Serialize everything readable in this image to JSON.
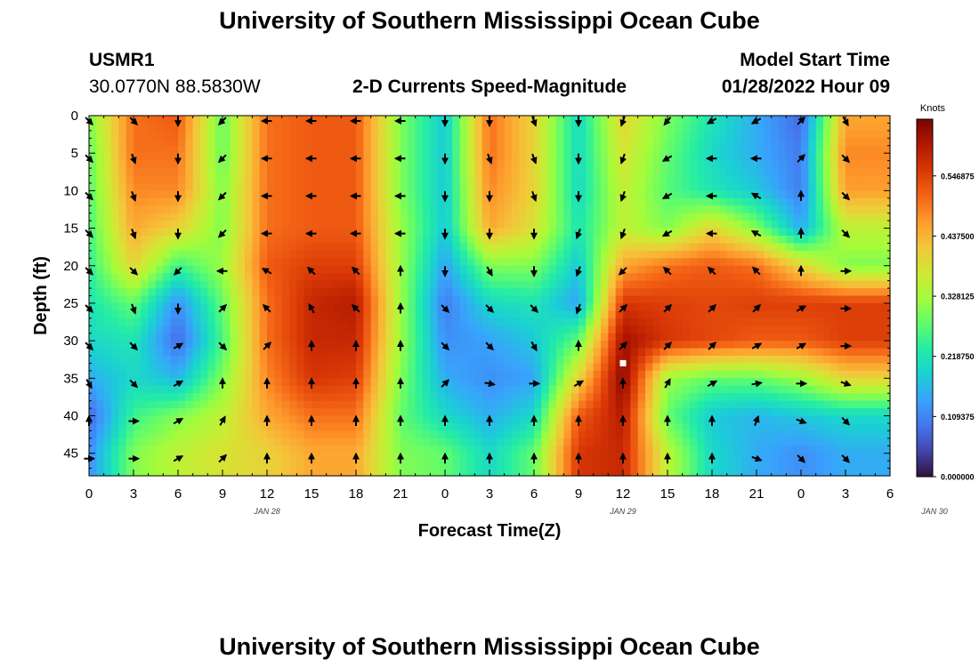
{
  "page": {
    "title_top": "University of Southern Mississippi Ocean Cube",
    "title_bottom": "University of Southern Mississippi Ocean Cube",
    "station": "USMR1",
    "coords": "30.0770N  88.5830W",
    "chart_title": "2-D Currents Speed-Magnitude",
    "model_label": "Model Start Time",
    "model_time": "01/28/2022 Hour 09"
  },
  "chart_data": {
    "type": "heatmap",
    "title": "2-D Currents Speed-Magnitude",
    "xlabel": "Forecast Time(Z)",
    "ylabel": "Depth (ft)",
    "x_ticks": [
      "0",
      "3",
      "6",
      "9",
      "12",
      "15",
      "18",
      "21",
      "0",
      "3",
      "6",
      "9",
      "12",
      "15",
      "18",
      "21",
      "0",
      "3",
      "6"
    ],
    "date_labels": [
      {
        "text": "JAN 28",
        "hour": 12
      },
      {
        "text": "JAN 29",
        "hour": 36
      },
      {
        "text": "JAN 30",
        "hour": 57
      }
    ],
    "x_range_hours": [
      0,
      54
    ],
    "y_ticks": [
      0,
      5,
      10,
      15,
      20,
      25,
      30,
      35,
      40,
      45
    ],
    "y_range_ft": [
      0,
      48
    ],
    "colorbar": {
      "unit": "Knots",
      "range": [
        0,
        0.65
      ],
      "tick_labels": [
        "0.000000",
        "0.109375",
        "0.218750",
        "0.328125",
        "0.437500",
        "0.546875"
      ],
      "tick_values": [
        0,
        0.109375,
        0.21875,
        0.328125,
        0.4375,
        0.546875
      ],
      "colors": [
        "#30123b",
        "#4145ab",
        "#4675ed",
        "#39a2fc",
        "#1bcfd4",
        "#24eca6",
        "#61fc6c",
        "#a4fc3b",
        "#d1e834",
        "#f3c63a",
        "#fe9b2d",
        "#f36315",
        "#d93806",
        "#b11901",
        "#7a0403"
      ]
    },
    "marker": {
      "hour": 36,
      "depth_ft": 33
    },
    "arrow_hours": [
      0,
      3,
      6,
      9,
      12,
      15,
      18,
      21,
      24,
      27,
      30,
      33,
      36,
      39,
      42,
      45,
      48,
      51
    ],
    "arrow_depths_ft": [
      0,
      5,
      10,
      15,
      20,
      25,
      30,
      35,
      40,
      45
    ],
    "speed_grid": [
      [
        0.3,
        0.5,
        0.52,
        0.28,
        0.5,
        0.52,
        0.52,
        0.3,
        0.18,
        0.5,
        0.4,
        0.2,
        0.4,
        0.3,
        0.22,
        0.15,
        0.08,
        0.45
      ],
      [
        0.28,
        0.5,
        0.5,
        0.28,
        0.5,
        0.52,
        0.52,
        0.3,
        0.18,
        0.5,
        0.4,
        0.2,
        0.38,
        0.28,
        0.2,
        0.15,
        0.1,
        0.48
      ],
      [
        0.27,
        0.48,
        0.48,
        0.3,
        0.5,
        0.52,
        0.52,
        0.3,
        0.18,
        0.48,
        0.4,
        0.2,
        0.36,
        0.27,
        0.22,
        0.18,
        0.1,
        0.46
      ],
      [
        0.26,
        0.45,
        0.4,
        0.3,
        0.5,
        0.52,
        0.52,
        0.32,
        0.18,
        0.45,
        0.38,
        0.22,
        0.35,
        0.3,
        0.4,
        0.3,
        0.15,
        0.35
      ],
      [
        0.24,
        0.4,
        0.25,
        0.32,
        0.52,
        0.55,
        0.55,
        0.32,
        0.14,
        0.3,
        0.3,
        0.18,
        0.45,
        0.5,
        0.52,
        0.5,
        0.4,
        0.3
      ],
      [
        0.22,
        0.28,
        0.12,
        0.28,
        0.5,
        0.58,
        0.6,
        0.32,
        0.1,
        0.2,
        0.22,
        0.14,
        0.56,
        0.55,
        0.54,
        0.55,
        0.55,
        0.55
      ],
      [
        0.2,
        0.22,
        0.08,
        0.26,
        0.5,
        0.58,
        0.58,
        0.32,
        0.12,
        0.14,
        0.18,
        0.28,
        0.62,
        0.56,
        0.54,
        0.52,
        0.52,
        0.55
      ],
      [
        0.15,
        0.2,
        0.16,
        0.3,
        0.48,
        0.56,
        0.55,
        0.3,
        0.15,
        0.12,
        0.14,
        0.4,
        0.64,
        0.32,
        0.28,
        0.28,
        0.32,
        0.4
      ],
      [
        0.08,
        0.25,
        0.3,
        0.35,
        0.45,
        0.5,
        0.5,
        0.28,
        0.2,
        0.15,
        0.2,
        0.52,
        0.6,
        0.28,
        0.18,
        0.16,
        0.18,
        0.2
      ],
      [
        0.12,
        0.3,
        0.35,
        0.38,
        0.4,
        0.45,
        0.45,
        0.3,
        0.28,
        0.2,
        0.28,
        0.56,
        0.58,
        0.35,
        0.2,
        0.15,
        0.12,
        0.15
      ]
    ],
    "direction_grid_deg": [
      [
        135,
        135,
        180,
        225,
        270,
        270,
        270,
        270,
        180,
        180,
        160,
        180,
        200,
        220,
        240,
        240,
        45,
        150
      ],
      [
        135,
        160,
        180,
        225,
        270,
        270,
        270,
        270,
        180,
        160,
        160,
        180,
        200,
        240,
        270,
        270,
        45,
        135
      ],
      [
        135,
        160,
        180,
        225,
        270,
        270,
        270,
        270,
        180,
        180,
        160,
        180,
        200,
        240,
        270,
        300,
        0,
        135
      ],
      [
        135,
        160,
        180,
        225,
        270,
        270,
        270,
        270,
        180,
        180,
        180,
        200,
        200,
        240,
        270,
        300,
        0,
        135
      ],
      [
        135,
        135,
        225,
        270,
        300,
        315,
        315,
        0,
        180,
        150,
        180,
        200,
        225,
        315,
        315,
        315,
        0,
        90
      ],
      [
        135,
        160,
        180,
        45,
        315,
        330,
        315,
        0,
        135,
        135,
        135,
        200,
        45,
        45,
        45,
        45,
        60,
        90
      ],
      [
        135,
        135,
        60,
        135,
        45,
        0,
        0,
        0,
        135,
        135,
        150,
        0,
        45,
        45,
        45,
        60,
        60,
        90
      ],
      [
        150,
        135,
        60,
        0,
        0,
        0,
        0,
        0,
        45,
        100,
        90,
        60,
        0,
        30,
        60,
        80,
        90,
        110
      ],
      [
        0,
        90,
        60,
        30,
        0,
        0,
        0,
        0,
        0,
        0,
        0,
        0,
        0,
        0,
        0,
        20,
        110,
        135
      ],
      [
        90,
        90,
        60,
        45,
        0,
        0,
        0,
        0,
        0,
        0,
        0,
        0,
        0,
        0,
        0,
        110,
        135,
        135
      ]
    ]
  }
}
